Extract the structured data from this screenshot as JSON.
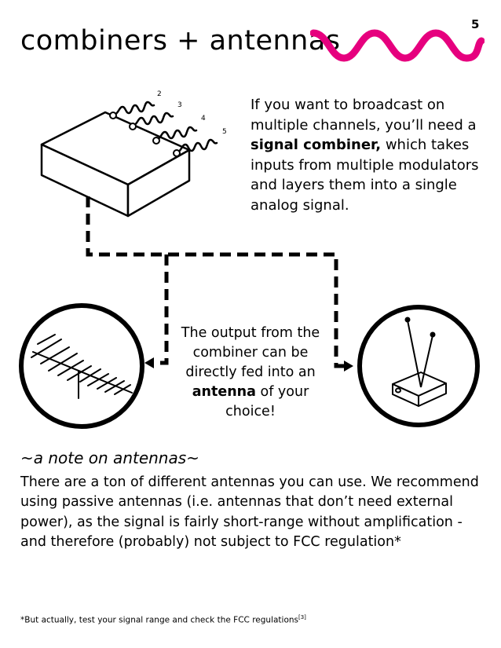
{
  "page": {
    "number": "5",
    "title": "combiners + antennas",
    "accent_color": "#e6007e"
  },
  "intro": {
    "text_before": "If you want to broadcast on multiple channels, you’ll need a ",
    "bold": "signal combiner,",
    "text_after": " which takes inputs from multiple modulators and layers them into a single analog signal."
  },
  "diagram": {
    "input_labels": [
      "2",
      "3",
      "4",
      "5"
    ],
    "left_icon": "yagi-antenna-icon",
    "right_icon": "rabbit-ears-antenna-icon",
    "combiner_icon": "signal-combiner-box-icon"
  },
  "center": {
    "text_before": "The output from the combiner can be directly fed into an ",
    "bold": "antenna",
    "text_after": " of your choice!"
  },
  "note": {
    "heading": "~a note on antennas~",
    "body": "There are a ton of different antennas you can use. We recommend using passive antennas (i.e. antennas that don’t need external power), as the signal is fairly short-range without amplification - and therefore (probably) not subject to FCC regulation*"
  },
  "footnote": {
    "text": "*But actually, test your signal range and check the FCC regulations",
    "ref": "[3]"
  }
}
